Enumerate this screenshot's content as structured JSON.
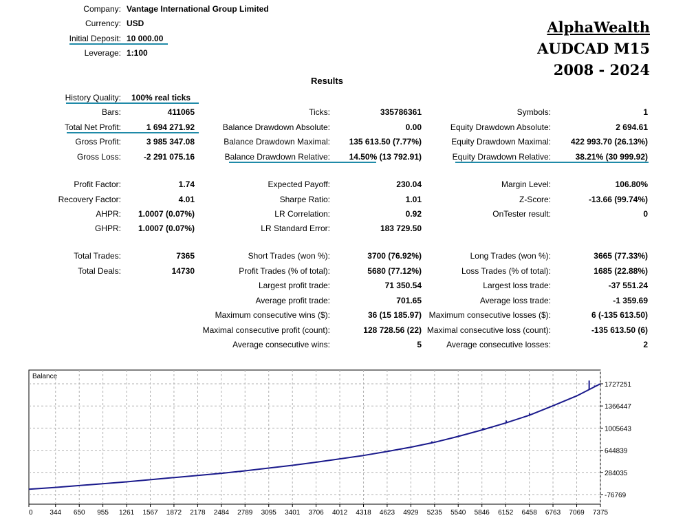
{
  "header": {
    "company": {
      "label": "Company:",
      "value": "Vantage International Group Limited"
    },
    "currency": {
      "label": "Currency:",
      "value": "USD"
    },
    "initial_deposit": {
      "label": "Initial Deposit:",
      "value": "10 000.00"
    },
    "leverage": {
      "label": "Leverage:",
      "value": "1:100"
    }
  },
  "brand": {
    "name": "AlphaWealth",
    "symbol": "AUDCAD M15",
    "period": "2008 - 2024"
  },
  "results_title": "Results",
  "col1": [
    {
      "label": "History Quality:",
      "value": "100% real ticks"
    },
    {
      "label": "Bars:",
      "value": "411065"
    },
    {
      "label": "Total Net Profit:",
      "value": "1 694 271.92"
    },
    {
      "label": "Gross Profit:",
      "value": "3 985 347.08"
    },
    {
      "label": "Gross Loss:",
      "value": "-2 291 075.16"
    },
    {
      "label": "Profit Factor:",
      "value": "1.74"
    },
    {
      "label": "Recovery Factor:",
      "value": "4.01"
    },
    {
      "label": "AHPR:",
      "value": "1.0007 (0.07%)"
    },
    {
      "label": "GHPR:",
      "value": "1.0007 (0.07%)"
    },
    {
      "label": "Total Trades:",
      "value": "7365"
    },
    {
      "label": "Total Deals:",
      "value": "14730"
    }
  ],
  "col2": [
    {
      "label": "Ticks:",
      "value": "335786361"
    },
    {
      "label": "Balance Drawdown Absolute:",
      "value": "0.00"
    },
    {
      "label": "Balance Drawdown Maximal:",
      "value": "135 613.50 (7.77%)"
    },
    {
      "label": "Balance Drawdown Relative:",
      "value": "14.50% (13 792.91)"
    },
    {
      "label": "Expected Payoff:",
      "value": "230.04"
    },
    {
      "label": "Sharpe Ratio:",
      "value": "1.01"
    },
    {
      "label": "LR Correlation:",
      "value": "0.92"
    },
    {
      "label": "LR Standard Error:",
      "value": "183 729.50"
    },
    {
      "label": "Short Trades (won %):",
      "value": "3700 (76.92%)"
    },
    {
      "label": "Profit Trades (% of total):",
      "value": "5680 (77.12%)"
    },
    {
      "label": "Largest profit trade:",
      "value": "71 350.54"
    },
    {
      "label": "Average profit trade:",
      "value": "701.65"
    },
    {
      "label": "Maximum consecutive wins ($):",
      "value": "36 (15 185.97)"
    },
    {
      "label": "Maximal consecutive profit (count):",
      "value": "128 728.56 (22)"
    },
    {
      "label": "Average consecutive wins:",
      "value": "5"
    }
  ],
  "col3": [
    {
      "label": "Symbols:",
      "value": "1"
    },
    {
      "label": "Equity Drawdown Absolute:",
      "value": "2 694.61"
    },
    {
      "label": "Equity Drawdown Maximal:",
      "value": "422 993.70 (26.13%)"
    },
    {
      "label": "Equity Drawdown Relative:",
      "value": "38.21% (30 999.92)"
    },
    {
      "label": "Margin Level:",
      "value": "106.80%"
    },
    {
      "label": "Z-Score:",
      "value": "-13.66 (99.74%)"
    },
    {
      "label": "OnTester result:",
      "value": "0"
    },
    {
      "label": "Long Trades (won %):",
      "value": "3665 (77.33%)"
    },
    {
      "label": "Loss Trades (% of total):",
      "value": "1685 (22.88%)"
    },
    {
      "label": "Largest loss trade:",
      "value": "-37 551.24"
    },
    {
      "label": "Average loss trade:",
      "value": "-1 359.69"
    },
    {
      "label": "Maximum consecutive losses ($):",
      "value": "6 (-135 613.50)"
    },
    {
      "label": "Maximal consecutive loss (count):",
      "value": "-135 613.50 (6)"
    },
    {
      "label": "Average consecutive losses:",
      "value": "2"
    }
  ],
  "chart_data": {
    "type": "line",
    "title": "Balance",
    "series": [
      {
        "name": "Balance",
        "color": "#1a1a8c"
      }
    ],
    "x": [
      0,
      344,
      650,
      955,
      1261,
      1567,
      1872,
      2178,
      2484,
      2789,
      3095,
      3401,
      3706,
      4012,
      4318,
      4623,
      4929,
      5235,
      5540,
      5846,
      6152,
      6458,
      6763,
      7069,
      7375
    ],
    "y": [
      10000,
      40000,
      70000,
      100000,
      130000,
      165000,
      200000,
      235000,
      270000,
      310000,
      355000,
      400000,
      450000,
      505000,
      560000,
      625000,
      695000,
      775000,
      870000,
      975000,
      1090000,
      1215000,
      1370000,
      1530000,
      1727251
    ],
    "spikes": [
      {
        "x": 5200,
        "y": 790000
      },
      {
        "x": 5545,
        "y": 890000
      },
      {
        "x": 5860,
        "y": 1010000
      },
      {
        "x": 6160,
        "y": 1130000
      },
      {
        "x": 6460,
        "y": 1250000
      },
      {
        "x": 6900,
        "y": 1440000
      },
      {
        "x": 7230,
        "y": 1780000
      },
      {
        "x": 7300,
        "y": 1700000
      }
    ],
    "x_ticks": [
      "0",
      "344",
      "650",
      "955",
      "1261",
      "1567",
      "1872",
      "2178",
      "2484",
      "2789",
      "3095",
      "3401",
      "3706",
      "4012",
      "4318",
      "4623",
      "4929",
      "5235",
      "5540",
      "5846",
      "6152",
      "6458",
      "6763",
      "7069",
      "7375"
    ],
    "y_ticks": [
      "1727251",
      "1366447",
      "1005643",
      "644839",
      "284035",
      "-76769"
    ],
    "y_tick_values": [
      1727251,
      1366447,
      1005643,
      644839,
      284035,
      -76769
    ],
    "xlim": [
      0,
      7375
    ],
    "ylim": [
      -76769,
      1727251
    ],
    "grid": true,
    "xlabel": "",
    "ylabel": ""
  }
}
